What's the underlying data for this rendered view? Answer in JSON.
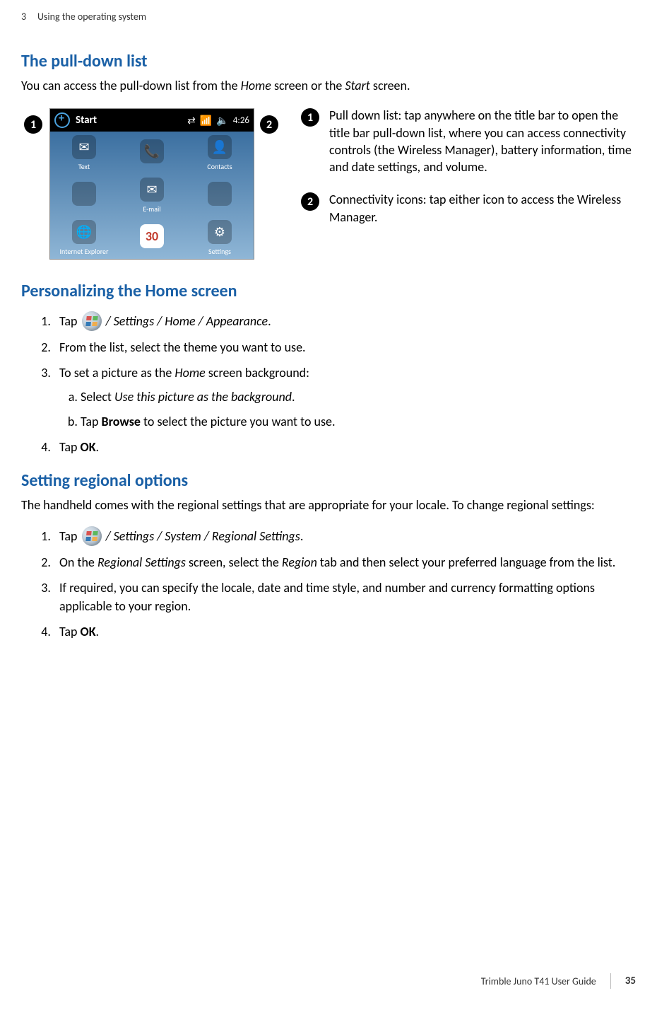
{
  "header": {
    "chapter": "3",
    "title": "Using the  operating system"
  },
  "section1": {
    "heading": "The pull-down list",
    "intro_pre": "You can access the pull-down list from the ",
    "intro_home": "Home",
    "intro_mid": " screen or the ",
    "intro_start": "Start",
    "intro_post": " screen."
  },
  "screenshot": {
    "titlebar": {
      "start": "Start",
      "clock": "4:26"
    },
    "tiles": [
      {
        "label": "",
        "icon": "🔍",
        "bg": "#000"
      },
      {
        "label": "",
        "icon": "📞",
        "bg": "#2e7d32"
      },
      {
        "label": "",
        "icon": "🔊",
        "bg": "#555"
      },
      {
        "label": "Text",
        "icon": "✉️",
        "bg": "#1976d2"
      },
      {
        "label": "",
        "icon": "",
        "bg": "transparent"
      },
      {
        "label": "Contacts",
        "icon": "👤",
        "bg": "#6d4c41"
      },
      {
        "label": "",
        "icon": "",
        "bg": "transparent"
      },
      {
        "label": "E-mail",
        "icon": "📧",
        "bg": "#7b1fa2"
      },
      {
        "label": "",
        "icon": "",
        "bg": "transparent"
      },
      {
        "label": "Internet Explorer",
        "icon": "🌐",
        "bg": "#0d47a1"
      },
      {
        "label": "",
        "icon": "30",
        "bg": "#fff"
      },
      {
        "label": "Settings",
        "icon": "⚙️",
        "bg": "#455a64"
      }
    ]
  },
  "callouts": [
    {
      "num": "❶",
      "num_plain": "1",
      "text": "Pull down list: tap anywhere on the title bar to open the title bar pull-down list, where you can access connectivity controls (the Wireless Manager), battery information, time and date settings, and volume."
    },
    {
      "num": "❷",
      "num_plain": "2",
      "text": "Connectivity icons: tap either icon to access the Wireless Manager."
    }
  ],
  "section2": {
    "heading": "Personalizing the Home screen",
    "steps": {
      "s1_pre": "Tap ",
      "s1_path": " / Settings / Home / Appearance",
      "s1_post": ".",
      "s2": "From the list, select the theme you want to use.",
      "s3_pre": "To set a picture as the ",
      "s3_home": "Home",
      "s3_post": " screen background:",
      "s3a_pre": "Select ",
      "s3a_em": "Use this picture as the background",
      "s3a_post": ".",
      "s3b_pre": "Tap ",
      "s3b_b": "Browse",
      "s3b_post": " to select the picture you want to use.",
      "s4_pre": "Tap ",
      "s4_b": "OK",
      "s4_post": "."
    }
  },
  "section3": {
    "heading": "Setting regional options",
    "intro": "The handheld comes with the regional settings that are appropriate for your locale. To change regional settings:",
    "steps": {
      "s1_pre": "Tap ",
      "s1_path": " / Settings / System / Regional Settings",
      "s1_post": ".",
      "s2_pre": "On the ",
      "s2_em1": "Regional Settings",
      "s2_mid": " screen, select the ",
      "s2_em2": "Region",
      "s2_post": " tab and then select your preferred language from the list.",
      "s3": "If required, you can specify the locale, date and time style, and number and currency formatting options applicable to your region.",
      "s4_pre": "Tap ",
      "s4_b": "OK",
      "s4_post": "."
    }
  },
  "footer": {
    "guide": "Trimble Juno T41 User Guide",
    "page": "35"
  },
  "colors": {
    "heading": "#1a60a6",
    "body": "#000000",
    "header_text": "#333333"
  }
}
